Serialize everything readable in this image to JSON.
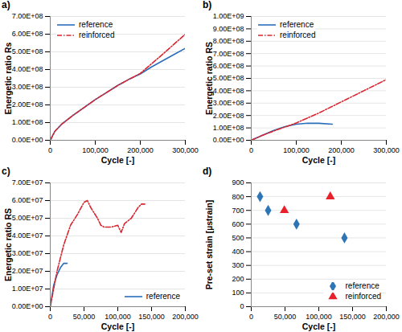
{
  "chart_data": [
    {
      "type": "line",
      "title": "a)",
      "x_label": "Cycle [-]",
      "y_label": "Energetic ratio Rs",
      "xlim": [
        0,
        300000
      ],
      "xticks": [
        0,
        {
          "value": 100000,
          "label": "100,000"
        },
        {
          "value": 200000,
          "label": "200,000"
        },
        {
          "value": 300000,
          "label": "300,000"
        }
      ],
      "ylim": [
        0,
        700000000
      ],
      "yticks": [
        {
          "value": 0,
          "label": "0.00E+00"
        },
        {
          "value": 100000000,
          "label": "1.00E+08"
        },
        {
          "value": 200000000,
          "label": "2.00E+08"
        },
        {
          "value": 300000000,
          "label": "3.00E+08"
        },
        {
          "value": 400000000,
          "label": "4.00E+08"
        },
        {
          "value": 500000000,
          "label": "5.00E+08"
        },
        {
          "value": 600000000,
          "label": "6.00E+08"
        },
        {
          "value": 700000000,
          "label": "7.00E+08"
        }
      ],
      "grid": true,
      "legend": "upper left",
      "series": [
        {
          "name": "reference",
          "color": "#2a6ebb",
          "line_style": "solid",
          "x": [
            0,
            10000,
            25000,
            50000,
            75000,
            100000,
            125000,
            150000,
            175000,
            200000,
            225000,
            250000,
            275000,
            300000
          ],
          "values": [
            0,
            50000000,
            90000000,
            140000000,
            185000000,
            230000000,
            270000000,
            310000000,
            345000000,
            375000000,
            415000000,
            450000000,
            485000000,
            520000000
          ]
        },
        {
          "name": "reinforced",
          "color": "#d9262e",
          "line_style": "dashdot",
          "x": [
            0,
            10000,
            25000,
            50000,
            75000,
            100000,
            125000,
            150000,
            175000,
            200000,
            250000,
            300000
          ],
          "values": [
            0,
            50000000,
            90000000,
            140000000,
            185000000,
            230000000,
            270000000,
            310000000,
            345000000,
            378000000,
            487000000,
            600000000
          ]
        }
      ]
    },
    {
      "type": "line",
      "title": "b)",
      "x_label": "Cycle [-]",
      "y_label": "Energetic ratio RS",
      "xlim": [
        0,
        300000
      ],
      "xticks": [
        0,
        {
          "value": 100000,
          "label": "100,000"
        },
        {
          "value": 200000,
          "label": "200,000"
        },
        {
          "value": 300000,
          "label": "300,000"
        }
      ],
      "ylim": [
        0,
        1000000000
      ],
      "yticks": [
        {
          "value": 0,
          "label": "0.00E+00"
        },
        {
          "value": 100000000,
          "label": "1.00E+08"
        },
        {
          "value": 200000000,
          "label": "2.00E+08"
        },
        {
          "value": 300000000,
          "label": "3.00E+08"
        },
        {
          "value": 400000000,
          "label": "4.00E+08"
        },
        {
          "value": 500000000,
          "label": "5.00E+08"
        },
        {
          "value": 600000000,
          "label": "6.00E+08"
        },
        {
          "value": 700000000,
          "label": "7.00E+08"
        },
        {
          "value": 800000000,
          "label": "8.00E+08"
        },
        {
          "value": 900000000,
          "label": "9.00E+08"
        },
        {
          "value": 1000000000,
          "label": "1.00E+09"
        }
      ],
      "grid": true,
      "legend": "upper left",
      "series": [
        {
          "name": "reference",
          "color": "#2a6ebb",
          "line_style": "solid",
          "x": [
            0,
            25000,
            50000,
            75000,
            100000,
            125000,
            150000,
            180000
          ],
          "values": [
            0,
            40000000,
            80000000,
            110000000,
            130000000,
            138000000,
            137000000,
            130000000
          ]
        },
        {
          "name": "reinforced",
          "color": "#d9262e",
          "line_style": "dashdot",
          "x": [
            0,
            25000,
            50000,
            100000,
            150000,
            200000,
            250000,
            300000
          ],
          "values": [
            0,
            40000000,
            75000000,
            140000000,
            220000000,
            310000000,
            400000000,
            490000000
          ]
        }
      ]
    },
    {
      "type": "line",
      "title": "c)",
      "x_label": "Cycle [-]",
      "y_label": "Energetic ratio RS",
      "xlim": [
        0,
        200000
      ],
      "xticks": [
        0,
        {
          "value": 50000,
          "label": "50,000"
        },
        {
          "value": 100000,
          "label": "100,000"
        },
        {
          "value": 150000,
          "label": "150,000"
        },
        {
          "value": 200000,
          "label": "200,000"
        }
      ],
      "ylim": [
        0,
        70000000
      ],
      "yticks": [
        {
          "value": 0,
          "label": "0.00E+00"
        },
        {
          "value": 10000000,
          "label": "1.00E+07"
        },
        {
          "value": 20000000,
          "label": "2.00E+07"
        },
        {
          "value": 30000000,
          "label": "3.00E+07"
        },
        {
          "value": 40000000,
          "label": "4.00E+07"
        },
        {
          "value": 50000000,
          "label": "5.00E+07"
        },
        {
          "value": 60000000,
          "label": "6.00E+07"
        },
        {
          "value": 70000000,
          "label": "7.00E+07"
        }
      ],
      "grid": true,
      "legend": "lower right",
      "series": [
        {
          "name": "reference",
          "color": "#2a6ebb",
          "line_style": "solid",
          "x": [
            0,
            5000,
            10000,
            15000,
            20000,
            25000
          ],
          "values": [
            0,
            12000000,
            18000000,
            22000000,
            24500000,
            24500000
          ]
        },
        {
          "color": "#d9262e",
          "line_style": "dashdot",
          "x": [
            0,
            10000,
            20000,
            30000,
            40000,
            50000,
            55000,
            60000,
            70000,
            75000,
            80000,
            90000,
            100000,
            105000,
            110000,
            120000,
            130000,
            135000,
            140000
          ],
          "values": [
            0,
            20000000,
            35000000,
            46000000,
            52000000,
            59000000,
            60000000,
            56000000,
            50000000,
            46000000,
            45000000,
            45000000,
            46000000,
            42000000,
            47000000,
            50000000,
            56000000,
            58000000,
            58000000
          ]
        }
      ]
    },
    {
      "type": "scatter",
      "title": "d)",
      "x_label": "Cycle [-]",
      "y_label": "Pre-set strain [µstrain]",
      "xlim": [
        0,
        200000
      ],
      "xticks": [
        0,
        {
          "value": 50000,
          "label": "50,000"
        },
        {
          "value": 100000,
          "label": "100,000"
        },
        {
          "value": 150000,
          "label": "150,000"
        },
        {
          "value": 200000,
          "label": "200,000"
        }
      ],
      "ylim": [
        0,
        900
      ],
      "yticks": [
        0,
        100,
        200,
        300,
        400,
        500,
        600,
        700,
        800,
        900
      ],
      "grid": true,
      "legend": "lower right",
      "series": [
        {
          "name": "reference",
          "color": "#2e75b6",
          "marker": "diamond",
          "x": [
            13000,
            25000,
            67000,
            138000
          ],
          "values": [
            800,
            700,
            600,
            500
          ]
        },
        {
          "name": "reinforced",
          "color": "#e8202a",
          "marker": "triangle",
          "x": [
            49000,
            117000
          ],
          "values": [
            700,
            800
          ]
        }
      ]
    }
  ]
}
